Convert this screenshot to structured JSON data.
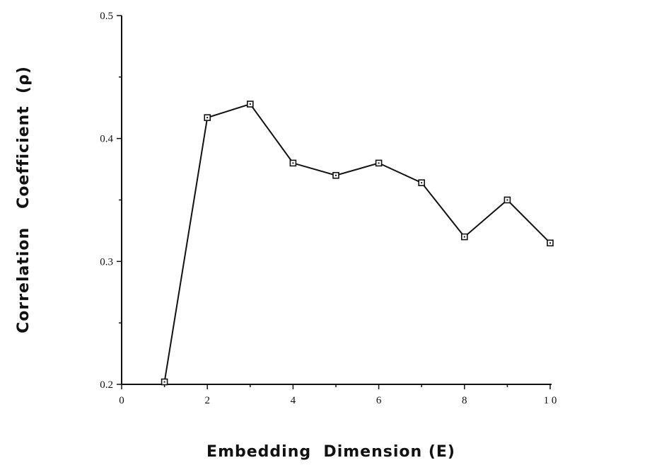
{
  "chart_data": {
    "type": "line",
    "title": "",
    "xlabel": "Embedding  Dimension (E)",
    "ylabel": "Correlation   Coefficient  (ρ)",
    "xlim": [
      0,
      10
    ],
    "ylim": [
      0.2,
      0.5
    ],
    "xticks": [
      0,
      2,
      4,
      6,
      8,
      10
    ],
    "xtick_labels": [
      "0",
      "2",
      "4",
      "6",
      "8",
      "1 0"
    ],
    "yticks": [
      0.2,
      0.3,
      0.4,
      0.5
    ],
    "ytick_labels": [
      "0.2",
      "0.3",
      "0.4",
      "0.5"
    ],
    "grid": false,
    "marker": "open-square",
    "series": [
      {
        "x": [
          1,
          2,
          3,
          4,
          5,
          6,
          7,
          8,
          9,
          10
        ],
        "y": [
          0.202,
          0.417,
          0.428,
          0.38,
          0.37,
          0.38,
          0.364,
          0.32,
          0.35,
          0.315
        ]
      }
    ],
    "line_color": "#111111"
  }
}
